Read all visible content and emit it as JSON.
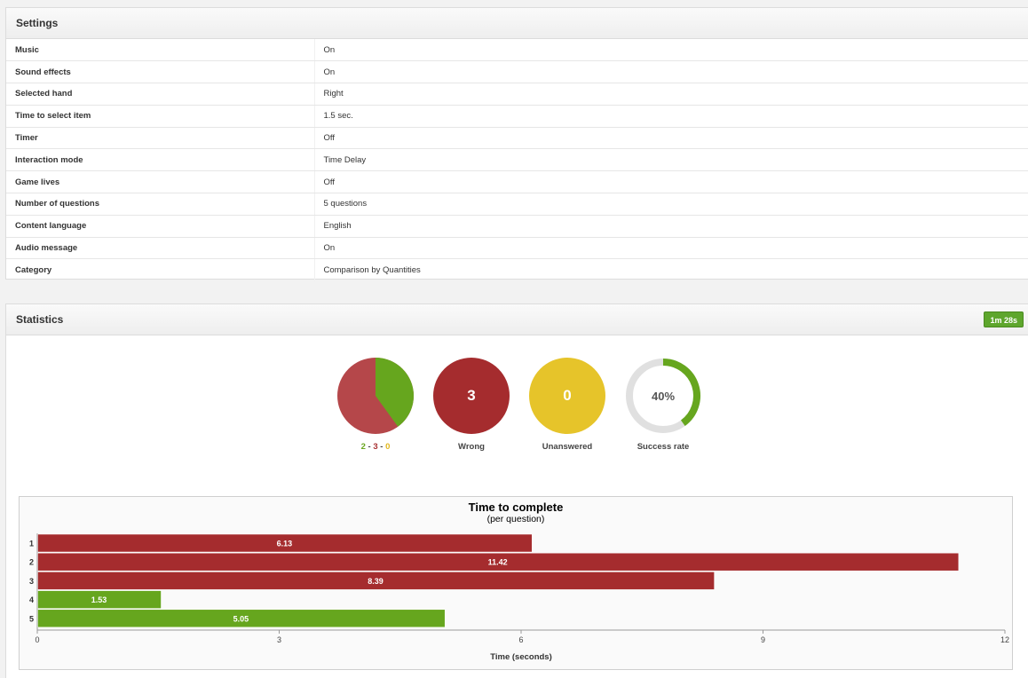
{
  "settings": {
    "title": "Settings",
    "rows": [
      {
        "label": "Music",
        "value": "On"
      },
      {
        "label": "Sound effects",
        "value": "On"
      },
      {
        "label": "Selected hand",
        "value": "Right"
      },
      {
        "label": "Time to select item",
        "value": "1.5 sec."
      },
      {
        "label": "Timer",
        "value": "Off"
      },
      {
        "label": "Interaction mode",
        "value": "Time Delay"
      },
      {
        "label": "Game lives",
        "value": "Off"
      },
      {
        "label": "Number of questions",
        "value": "5 questions"
      },
      {
        "label": "Content language",
        "value": "English"
      },
      {
        "label": "Audio message",
        "value": "On"
      },
      {
        "label": "Category",
        "value": "Comparison by Quantities"
      }
    ]
  },
  "statistics": {
    "title": "Statistics",
    "time_badge": "1m 28s",
    "summary": {
      "correct": "2",
      "wrong": "3",
      "unanswered": "0",
      "separator": "-"
    },
    "correct_fraction": 0.4,
    "wrong_value": "3",
    "wrong_label": "Wrong",
    "unanswered_value": "0",
    "unanswered_label": "Unanswered",
    "success_rate_value": "40%",
    "success_rate_fraction": 0.4,
    "success_rate_label": "Success rate"
  },
  "colors": {
    "correct": "#66a61e",
    "wrong": "#a52c2e",
    "wrong_light": "#b5474a",
    "unanswered": "#e6c42a",
    "ring_track": "#e0e0e0"
  },
  "chart_data": {
    "type": "bar",
    "orientation": "horizontal",
    "title": "Time to complete",
    "subtitle": "(per question)",
    "xlabel": "Time (seconds)",
    "categories": [
      "1",
      "2",
      "3",
      "4",
      "5"
    ],
    "values": [
      6.13,
      11.42,
      8.39,
      1.53,
      5.05
    ],
    "value_labels": [
      "6.13",
      "11.42",
      "8.39",
      "1.53",
      "5.05"
    ],
    "bar_status": [
      "wrong",
      "wrong",
      "wrong",
      "correct",
      "correct"
    ],
    "xlim": [
      0,
      12
    ],
    "xticks": [
      0,
      3,
      6,
      9,
      12
    ]
  }
}
